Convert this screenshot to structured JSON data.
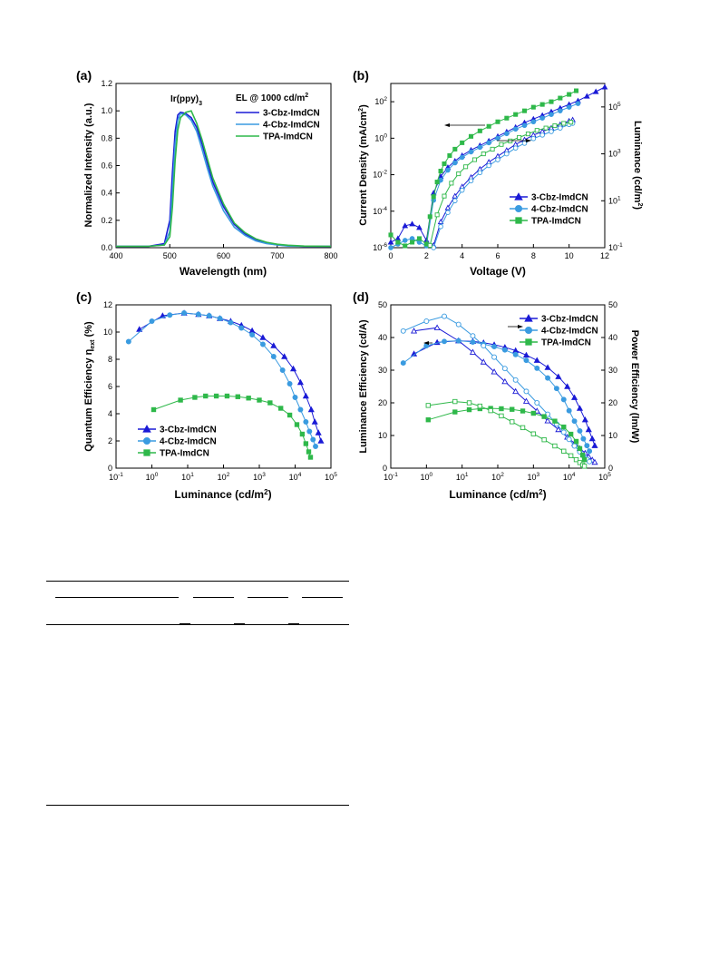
{
  "colors": {
    "cbz3": "#1a1ad6",
    "cbz4": "#3a9be0",
    "tpa": "#2fb84a"
  },
  "chart_data": [
    {
      "type": "line",
      "panel_label": "(a)",
      "xlabel": "Wavelength (nm)",
      "ylabel": "Normalized Intensity (a.u.)",
      "xlim": [
        400,
        800
      ],
      "ylim": [
        0.0,
        1.2
      ],
      "xticks": [
        "400",
        "500",
        "600",
        "700",
        "800"
      ],
      "yticks": [
        "0.0",
        "0.2",
        "0.4",
        "0.6",
        "0.8",
        "1.0",
        "1.2"
      ],
      "annotation": "Ir(ppy)",
      "annotation_sub": "3",
      "legend_title": "EL @ 1000 cd/m",
      "legend_title_sup": "2",
      "series": [
        {
          "name": "3-Cbz-ImdCN",
          "x": [
            400,
            460,
            490,
            500,
            505,
            510,
            515,
            520,
            525,
            530,
            540,
            550,
            560,
            570,
            580,
            600,
            620,
            640,
            660,
            680,
            700,
            720,
            750,
            800
          ],
          "y": [
            0.01,
            0.01,
            0.03,
            0.2,
            0.55,
            0.85,
            0.97,
            0.99,
            0.985,
            0.98,
            0.95,
            0.88,
            0.76,
            0.62,
            0.48,
            0.3,
            0.17,
            0.1,
            0.06,
            0.035,
            0.02,
            0.015,
            0.01,
            0.01
          ]
        },
        {
          "name": "4-Cbz-ImdCN",
          "x": [
            400,
            460,
            490,
            500,
            505,
            510,
            515,
            520,
            525,
            530,
            540,
            550,
            560,
            570,
            580,
            600,
            620,
            640,
            660,
            680,
            700,
            720,
            750,
            800
          ],
          "y": [
            0.01,
            0.01,
            0.02,
            0.12,
            0.42,
            0.76,
            0.93,
            0.98,
            0.975,
            0.97,
            0.93,
            0.85,
            0.72,
            0.58,
            0.45,
            0.27,
            0.15,
            0.09,
            0.05,
            0.03,
            0.02,
            0.012,
            0.01,
            0.01
          ]
        },
        {
          "name": "TPA-ImdCN",
          "x": [
            400,
            460,
            490,
            500,
            505,
            510,
            515,
            520,
            525,
            530,
            540,
            550,
            560,
            570,
            580,
            600,
            620,
            640,
            660,
            680,
            700,
            720,
            750,
            800
          ],
          "y": [
            0.01,
            0.01,
            0.02,
            0.08,
            0.3,
            0.64,
            0.86,
            0.95,
            0.97,
            0.99,
            1.0,
            0.91,
            0.79,
            0.65,
            0.51,
            0.32,
            0.18,
            0.11,
            0.065,
            0.04,
            0.025,
            0.018,
            0.012,
            0.01
          ]
        }
      ]
    },
    {
      "type": "line",
      "panel_label": "(b)",
      "xlabel": "Voltage (V)",
      "ylabel": "Current Density (mA/cm",
      "ylabel_sup": "2",
      "ylabel_close": ")",
      "y2label": "Luminance (cd/m",
      "y2label_sup": "2",
      "y2label_close": ")",
      "log_scale": true,
      "xlim": [
        0,
        12
      ],
      "ylim_exp": [
        -6,
        3
      ],
      "y2lim_exp": [
        -1,
        6
      ],
      "xticks": [
        "0",
        "2",
        "4",
        "6",
        "8",
        "10",
        "12"
      ],
      "yticks_base": "10",
      "yticks_exp": [
        "-6",
        "-4",
        "-2",
        "0",
        "2"
      ],
      "y2ticks_base": "10",
      "y2ticks_exp": [
        "-1",
        "1",
        "3",
        "5"
      ],
      "series": [
        {
          "name": "3-Cbz-ImdCN",
          "axis": "left",
          "x": [
            0,
            0.4,
            0.8,
            1.2,
            1.6,
            2.0,
            2.4,
            2.8,
            3.2,
            3.6,
            4.0,
            4.5,
            5,
            5.5,
            6,
            6.5,
            7,
            7.5,
            8,
            8.5,
            9,
            9.5,
            10,
            10.5,
            11,
            11.5,
            12
          ],
          "y_exp": [
            -5.7,
            -5.5,
            -4.8,
            -4.7,
            -4.9,
            -5.6,
            -3.0,
            -2.1,
            -1.6,
            -1.25,
            -0.95,
            -0.65,
            -0.4,
            -0.15,
            0.1,
            0.35,
            0.6,
            0.85,
            1.05,
            1.25,
            1.45,
            1.65,
            1.85,
            2.05,
            2.3,
            2.55,
            2.8
          ]
        },
        {
          "name": "3-Cbz-ImdCN",
          "axis": "right",
          "open": true,
          "x": [
            2.4,
            2.8,
            3.2,
            3.6,
            4.0,
            4.5,
            5,
            5.5,
            6,
            6.5,
            7,
            7.5,
            8,
            8.5,
            9,
            9.5,
            10,
            10.2
          ],
          "y_exp": [
            -0.9,
            0.1,
            0.7,
            1.2,
            1.6,
            2.0,
            2.35,
            2.65,
            2.9,
            3.15,
            3.4,
            3.6,
            3.8,
            3.95,
            4.1,
            4.25,
            4.4,
            4.45
          ]
        },
        {
          "name": "4-Cbz-ImdCN",
          "axis": "left",
          "x": [
            0,
            0.4,
            0.8,
            1.2,
            1.6,
            2.0,
            2.4,
            2.8,
            3.2,
            3.6,
            4.0,
            4.5,
            5,
            5.5,
            6,
            6.5,
            7,
            7.5,
            8,
            8.5,
            9,
            9.5,
            10,
            10.5
          ],
          "y_exp": [
            -6.0,
            -5.8,
            -5.6,
            -5.5,
            -5.7,
            -5.9,
            -3.4,
            -2.3,
            -1.75,
            -1.35,
            -1.05,
            -0.75,
            -0.5,
            -0.25,
            0.0,
            0.25,
            0.5,
            0.7,
            0.9,
            1.1,
            1.3,
            1.5,
            1.7,
            1.9
          ]
        },
        {
          "name": "4-Cbz-ImdCN",
          "axis": "right",
          "open": true,
          "x": [
            2.4,
            2.8,
            3.2,
            3.6,
            4.0,
            4.5,
            5,
            5.5,
            6,
            6.5,
            7,
            7.5,
            8,
            8.5,
            9,
            9.5,
            10,
            10.2
          ],
          "y_exp": [
            -1.0,
            -0.1,
            0.5,
            1.0,
            1.45,
            1.85,
            2.2,
            2.5,
            2.75,
            3.0,
            3.25,
            3.45,
            3.65,
            3.8,
            3.95,
            4.1,
            4.25,
            4.3
          ]
        },
        {
          "name": "TPA-ImdCN",
          "axis": "left",
          "x": [
            0,
            0.4,
            0.8,
            1.2,
            1.6,
            2.0,
            2.2,
            2.4,
            2.6,
            2.8,
            3.0,
            3.3,
            3.6,
            4.0,
            4.5,
            5,
            5.5,
            6,
            6.5,
            7,
            7.5,
            8,
            8.5,
            9,
            9.5,
            10,
            10.4
          ],
          "y_exp": [
            -5.3,
            -5.7,
            -5.9,
            -5.7,
            -5.5,
            -5.8,
            -4.3,
            -3.2,
            -2.4,
            -1.8,
            -1.4,
            -0.95,
            -0.6,
            -0.25,
            0.1,
            0.4,
            0.65,
            0.9,
            1.1,
            1.3,
            1.5,
            1.7,
            1.85,
            2.0,
            2.2,
            2.4,
            2.6
          ]
        },
        {
          "name": "TPA-ImdCN",
          "axis": "right",
          "open": true,
          "x": [
            2.2,
            2.6,
            3.0,
            3.4,
            3.8,
            4.2,
            4.7,
            5.2,
            5.7,
            6.2,
            6.7,
            7.2,
            7.7,
            8.2,
            8.7,
            9.2,
            9.7,
            10.1
          ],
          "y_exp": [
            -0.9,
            0.4,
            1.2,
            1.75,
            2.15,
            2.45,
            2.75,
            3.0,
            3.2,
            3.4,
            3.55,
            3.7,
            3.85,
            4.0,
            4.1,
            4.2,
            4.3,
            4.35
          ]
        }
      ]
    },
    {
      "type": "line",
      "panel_label": "(c)",
      "xlabel": "Luminance (cd/m",
      "xlabel_sup": "2",
      "xlabel_close": ")",
      "ylabel": "Quantum Efficiency η",
      "ylabel_sub": "ext",
      "ylabel_close": " (%)",
      "log_scale": true,
      "xlim_exp": [
        -1,
        5
      ],
      "ylim": [
        0,
        12
      ],
      "xticks_base": "10",
      "xticks_exp": [
        "-1",
        "0",
        "1",
        "2",
        "3",
        "4",
        "5"
      ],
      "yticks": [
        "0",
        "2",
        "4",
        "6",
        "8",
        "10",
        "12"
      ],
      "series": [
        {
          "name": "3-Cbz-ImdCN",
          "x_exp": [
            -0.35,
            0.3,
            0.9,
            1.3,
            1.6,
            1.9,
            2.2,
            2.5,
            2.8,
            3.1,
            3.4,
            3.7,
            3.95,
            4.15,
            4.3,
            4.45,
            4.55,
            4.65,
            4.72
          ],
          "y": [
            10.2,
            11.2,
            11.4,
            11.3,
            11.2,
            11.0,
            10.8,
            10.5,
            10.1,
            9.6,
            9.0,
            8.2,
            7.3,
            6.3,
            5.3,
            4.3,
            3.4,
            2.6,
            2.0
          ]
        },
        {
          "name": "4-Cbz-ImdCN",
          "x_exp": [
            -0.65,
            0.0,
            0.5,
            0.9,
            1.3,
            1.6,
            1.9,
            2.2,
            2.5,
            2.8,
            3.1,
            3.4,
            3.65,
            3.85,
            4.0,
            4.15,
            4.3,
            4.4,
            4.5,
            4.57
          ],
          "y": [
            9.3,
            10.8,
            11.25,
            11.4,
            11.3,
            11.2,
            11.0,
            10.7,
            10.3,
            9.8,
            9.1,
            8.2,
            7.2,
            6.2,
            5.2,
            4.3,
            3.4,
            2.7,
            2.1,
            1.6
          ]
        },
        {
          "name": "TPA-ImdCN",
          "x_exp": [
            0.05,
            0.8,
            1.2,
            1.5,
            1.8,
            2.1,
            2.4,
            2.7,
            3.0,
            3.3,
            3.6,
            3.85,
            4.05,
            4.2,
            4.3,
            4.38,
            4.43
          ],
          "y": [
            4.3,
            5.0,
            5.2,
            5.3,
            5.3,
            5.3,
            5.25,
            5.15,
            5.0,
            4.8,
            4.4,
            3.9,
            3.2,
            2.5,
            1.8,
            1.2,
            0.8
          ]
        }
      ]
    },
    {
      "type": "line",
      "panel_label": "(d)",
      "xlabel": "Luminance (cd/m",
      "xlabel_sup": "2",
      "xlabel_close": ")",
      "ylabel": "Luminance Efficiency (cd/A)",
      "y2label": "Power Efficiency (lm/W)",
      "log_scale": true,
      "xlim_exp": [
        -1,
        5
      ],
      "ylim": [
        0,
        50
      ],
      "y2lim": [
        0,
        50
      ],
      "xticks_base": "10",
      "xticks_exp": [
        "-1",
        "0",
        "1",
        "2",
        "3",
        "4",
        "5"
      ],
      "yticks": [
        "0",
        "10",
        "20",
        "30",
        "40",
        "50"
      ],
      "y2ticks": [
        "0",
        "10",
        "20",
        "30",
        "40",
        "50"
      ],
      "series": [
        {
          "name": "3-Cbz-ImdCN",
          "axis": "left",
          "x_exp": [
            -0.35,
            0.3,
            0.9,
            1.3,
            1.6,
            1.9,
            2.2,
            2.5,
            2.8,
            3.1,
            3.4,
            3.7,
            3.95,
            4.15,
            4.3,
            4.45,
            4.55,
            4.65,
            4.72
          ],
          "y": [
            35.0,
            38.5,
            39.0,
            38.8,
            38.4,
            37.8,
            37.0,
            36.0,
            34.6,
            33.0,
            30.8,
            28.0,
            25.0,
            21.6,
            18.3,
            14.8,
            11.8,
            9.0,
            6.9
          ]
        },
        {
          "name": "3-Cbz-ImdCN",
          "axis": "right",
          "open": true,
          "x_exp": [
            -0.35,
            0.3,
            0.9,
            1.3,
            1.6,
            1.9,
            2.2,
            2.5,
            2.8,
            3.1,
            3.4,
            3.7,
            3.95,
            4.15,
            4.3,
            4.45,
            4.55,
            4.65,
            4.72
          ],
          "y": [
            42.0,
            43.0,
            39.0,
            35.5,
            32.5,
            29.5,
            26.5,
            23.5,
            20.5,
            17.5,
            14.5,
            11.8,
            9.5,
            7.6,
            6.0,
            4.6,
            3.5,
            2.5,
            1.8
          ]
        },
        {
          "name": "4-Cbz-ImdCN",
          "axis": "left",
          "x_exp": [
            -0.65,
            0.0,
            0.5,
            0.9,
            1.3,
            1.6,
            1.9,
            2.2,
            2.5,
            2.8,
            3.1,
            3.4,
            3.65,
            3.85,
            4.0,
            4.15,
            4.3,
            4.4,
            4.5,
            4.57
          ],
          "y": [
            32.2,
            37.5,
            38.8,
            39.0,
            38.6,
            38.0,
            37.2,
            36.2,
            34.8,
            33.0,
            30.6,
            27.6,
            24.4,
            21.0,
            17.6,
            14.4,
            11.4,
            9.0,
            6.9,
            5.2
          ]
        },
        {
          "name": "4-Cbz-ImdCN",
          "axis": "right",
          "open": true,
          "x_exp": [
            -0.65,
            0.0,
            0.5,
            0.9,
            1.3,
            1.6,
            1.9,
            2.2,
            2.5,
            2.8,
            3.1,
            3.4,
            3.65,
            3.85,
            4.0,
            4.15,
            4.3,
            4.4,
            4.5,
            4.57
          ],
          "y": [
            42.0,
            45.0,
            46.5,
            44.0,
            40.5,
            37.5,
            34.0,
            30.5,
            27.0,
            23.5,
            20.0,
            16.5,
            13.5,
            11.0,
            8.8,
            6.8,
            5.0,
            3.8,
            2.7,
            2.0
          ]
        },
        {
          "name": "TPA-ImdCN",
          "axis": "left",
          "x_exp": [
            0.05,
            0.8,
            1.2,
            1.5,
            1.8,
            2.1,
            2.4,
            2.7,
            3.0,
            3.3,
            3.6,
            3.85,
            4.05,
            4.2,
            4.3,
            4.38,
            4.43
          ],
          "y": [
            14.8,
            17.2,
            17.9,
            18.2,
            18.3,
            18.2,
            18.0,
            17.5,
            16.8,
            15.8,
            14.4,
            12.6,
            10.4,
            8.2,
            6.0,
            4.0,
            2.6
          ]
        },
        {
          "name": "TPA-ImdCN",
          "axis": "right",
          "open": true,
          "x_exp": [
            0.05,
            0.8,
            1.2,
            1.5,
            1.8,
            2.1,
            2.4,
            2.7,
            3.0,
            3.3,
            3.6,
            3.85,
            4.05,
            4.2,
            4.3,
            4.38,
            4.43
          ],
          "y": [
            19.2,
            20.4,
            20.0,
            19.0,
            17.6,
            16.0,
            14.2,
            12.4,
            10.5,
            8.7,
            6.8,
            5.2,
            3.8,
            2.6,
            1.7,
            1.0,
            0.6
          ]
        }
      ]
    }
  ]
}
